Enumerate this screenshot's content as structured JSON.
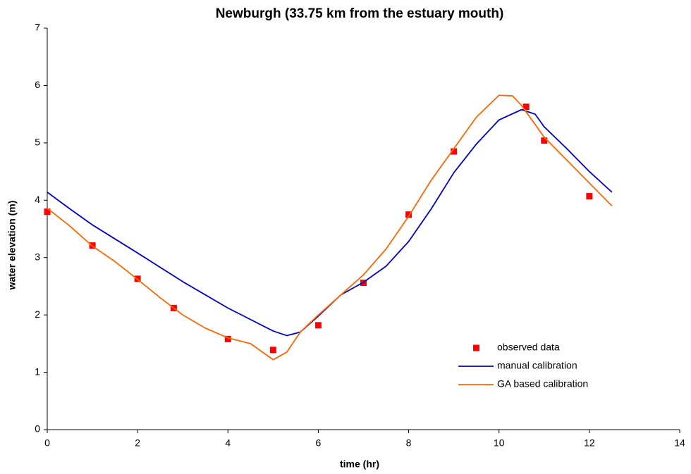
{
  "chart_data": {
    "type": "line",
    "title": "Newburgh (33.75 km from the estuary mouth)",
    "x_label": "time (hr)",
    "y_label": "water elevation (m)",
    "xlim": [
      0,
      14
    ],
    "xticks": [
      0,
      2,
      4,
      6,
      8,
      10,
      12,
      14
    ],
    "ylim": [
      0,
      7
    ],
    "yticks": [
      0,
      1,
      2,
      3,
      4,
      5,
      6,
      7
    ],
    "grid": false,
    "legend": "lower right",
    "series": [
      {
        "name": "observed data",
        "color": "#ff0000",
        "mode": "markers",
        "x": [
          0,
          1,
          2,
          2.8,
          4,
          5,
          6,
          7,
          8,
          9,
          10.6,
          11,
          12
        ],
        "values": [
          3.8,
          3.21,
          2.63,
          2.12,
          1.58,
          1.39,
          1.82,
          2.56,
          3.75,
          4.85,
          5.63,
          5.04,
          4.07
        ]
      },
      {
        "name": "manual calibration",
        "color": "#0000cc",
        "mode": "line",
        "x": [
          0,
          0.5,
          1,
          2,
          3,
          4,
          5,
          5.3,
          5.6,
          6,
          6.5,
          7,
          7.5,
          8,
          8.5,
          9,
          9.5,
          10,
          10.5,
          10.8,
          11,
          11.5,
          12,
          12.5
        ],
        "values": [
          4.14,
          3.85,
          3.57,
          3.08,
          2.58,
          2.12,
          1.72,
          1.64,
          1.7,
          1.98,
          2.35,
          2.57,
          2.85,
          3.28,
          3.85,
          4.48,
          4.98,
          5.4,
          5.58,
          5.5,
          5.28,
          4.9,
          4.5,
          4.14
        ]
      },
      {
        "name": "GA based calibration",
        "color": "#ff6600",
        "mode": "line",
        "x": [
          0,
          0.5,
          1,
          1.5,
          2,
          2.5,
          3,
          3.5,
          4,
          4.5,
          5,
          5.3,
          5.6,
          6,
          6.5,
          7,
          7.5,
          8,
          8.5,
          9,
          9.5,
          10,
          10.3,
          10.5,
          11,
          11.5,
          12,
          12.5
        ],
        "values": [
          3.86,
          3.55,
          3.2,
          2.93,
          2.62,
          2.3,
          2.0,
          1.77,
          1.6,
          1.5,
          1.22,
          1.35,
          1.7,
          2.0,
          2.35,
          2.7,
          3.15,
          3.72,
          4.35,
          4.9,
          5.45,
          5.83,
          5.82,
          5.65,
          5.1,
          4.7,
          4.3,
          3.9
        ]
      }
    ]
  }
}
